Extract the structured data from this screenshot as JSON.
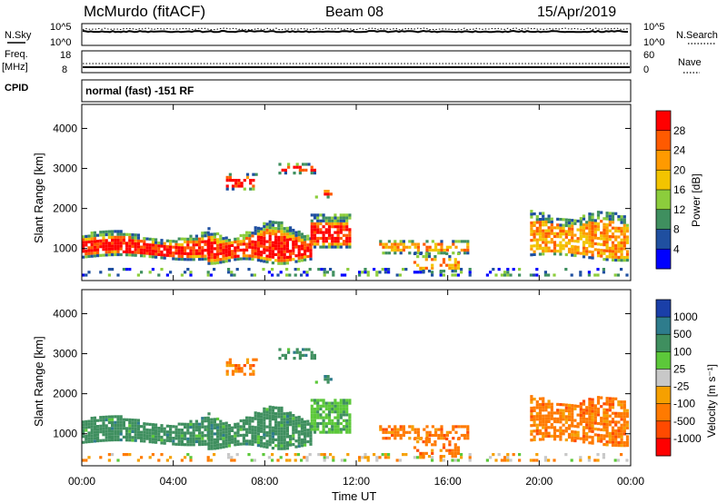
{
  "header": {
    "station": "McMurdo (fitACF)",
    "beam": "Beam 08",
    "date": "15/Apr/2019"
  },
  "status_panel": {
    "nsky_label": "N.Sky",
    "nsky_ticks": [
      "10^5",
      "10^0"
    ],
    "nsearch_label": "N.Search",
    "nsearch_ticks": [
      "10^5",
      "10^0"
    ],
    "freq_label": "Freq.",
    "freq_unit": "[MHz]",
    "freq_ticks": [
      "18",
      "8"
    ],
    "nave_label": "Nave",
    "nave_ticks": [
      "60",
      "0"
    ],
    "cpid_label": "CPID",
    "cpid_value": "normal (fast) -151 RF"
  },
  "chart_data": [
    {
      "type": "heatmap",
      "name": "power-panel",
      "ylabel": "Slant Range [km]",
      "xlabel": "",
      "x_ticks": [
        "00:00",
        "04:00",
        "08:00",
        "12:00",
        "16:00",
        "20:00",
        "00:00"
      ],
      "y_ticks": [
        1000,
        2000,
        3000,
        4000
      ],
      "ylim": [
        200,
        4600
      ],
      "xlim_hours": [
        0,
        24
      ],
      "colorbar": {
        "label": "Power [dB]",
        "ticks": [
          "28",
          "24",
          "20",
          "16",
          "12",
          "8",
          "4"
        ],
        "colors": [
          "#ff0000",
          "#ff5a00",
          "#ff9a00",
          "#f2c400",
          "#8ccd3c",
          "#3f8f5f",
          "#1f4fa0",
          "#0000ff"
        ]
      }
    },
    {
      "type": "heatmap",
      "name": "velocity-panel",
      "ylabel": "Slant Range [km]",
      "xlabel": "Time UT",
      "x_ticks": [
        "00:00",
        "04:00",
        "08:00",
        "12:00",
        "16:00",
        "20:00",
        "00:00"
      ],
      "y_ticks": [
        1000,
        2000,
        3000,
        4000
      ],
      "ylim": [
        200,
        4600
      ],
      "xlim_hours": [
        0,
        24
      ],
      "colorbar": {
        "label": "Velocity [m s⁻¹]",
        "ticks": [
          "1000",
          "500",
          "100",
          "25",
          "-25",
          "-100",
          "-500",
          "-1000"
        ],
        "colors": [
          "#1a3fa8",
          "#2e7c8c",
          "#3f8f5f",
          "#5cc83a",
          "#c8c8c8",
          "#f6a000",
          "#ff7a00",
          "#ff4a00",
          "#ff0000"
        ]
      }
    }
  ]
}
